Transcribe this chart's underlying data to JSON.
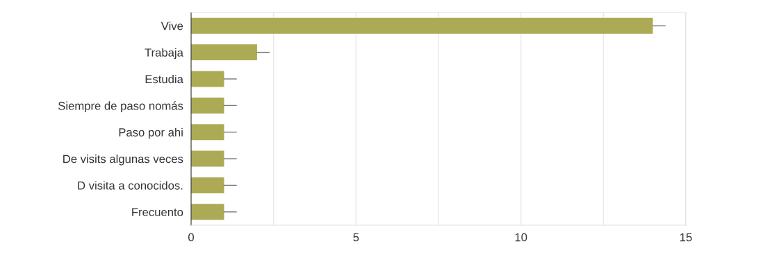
{
  "chart_data": {
    "type": "bar",
    "orientation": "horizontal",
    "categories": [
      "Vive",
      "Trabaja",
      "Estudia",
      "Siempre de paso nomás",
      "Paso por ahi",
      "De visits algunas veces",
      "D visita a conocidos.",
      "Frecuento"
    ],
    "values": [
      14,
      2,
      1,
      1,
      1,
      1,
      1,
      1
    ],
    "errors": [
      [
        14,
        14.37
      ],
      [
        2,
        2.37
      ],
      [
        1,
        1.37
      ],
      [
        1,
        1.37
      ],
      [
        1,
        1.37
      ],
      [
        1,
        1.37
      ],
      [
        1,
        1.37
      ],
      [
        1,
        1.37
      ]
    ],
    "color": "#acaa55",
    "xlim": [
      0,
      15
    ],
    "xticks": [
      0,
      {
        "value": 2.5,
        "label": null
      },
      5,
      {
        "value": 7.5,
        "label": null
      },
      10,
      {
        "value": 12.5,
        "label": null
      },
      15
    ],
    "grid": "x"
  }
}
